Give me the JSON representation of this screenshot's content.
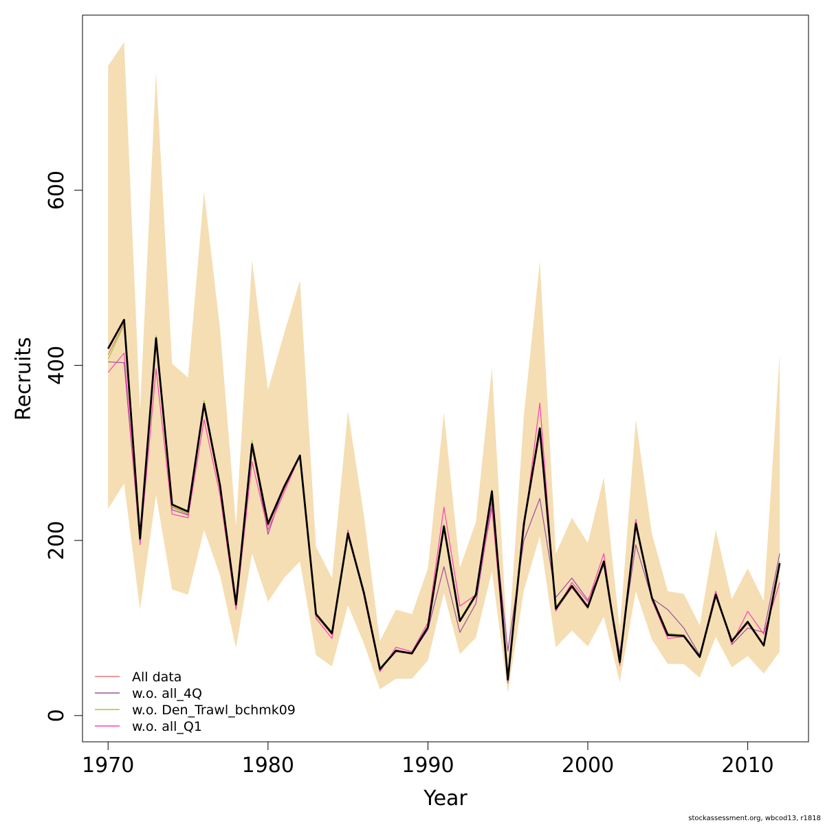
{
  "chart_data": {
    "type": "line",
    "xlabel": "Year",
    "ylabel": "Recruits",
    "xlim": [
      1968.4,
      2013.8
    ],
    "ylim": [
      -30,
      800
    ],
    "x_ticks": [
      1970,
      1980,
      1990,
      2000,
      2010
    ],
    "y_ticks": [
      0,
      200,
      400,
      600
    ],
    "grid": false,
    "legend_position": "bottom-left",
    "x": [
      1970,
      1971,
      1972,
      1973,
      1974,
      1975,
      1976,
      1977,
      1978,
      1979,
      1980,
      1981,
      1982,
      1983,
      1984,
      1985,
      1986,
      1987,
      1988,
      1989,
      1990,
      1991,
      1992,
      1993,
      1994,
      1995,
      1996,
      1997,
      1998,
      1999,
      2000,
      2001,
      2002,
      2003,
      2004,
      2005,
      2006,
      2007,
      2008,
      2009,
      2010,
      2011,
      2012
    ],
    "band": {
      "color": "#F5DEB3",
      "lower": [
        236,
        265,
        121,
        252,
        144,
        138,
        212,
        160,
        77,
        185,
        130,
        157,
        176,
        69,
        56,
        126,
        82,
        30,
        42,
        42,
        63,
        140,
        70,
        89,
        165,
        26,
        143,
        205,
        78,
        97,
        79,
        113,
        38,
        142,
        87,
        59,
        59,
        43,
        90,
        55,
        68,
        48,
        73
      ],
      "upper": [
        742,
        769,
        348,
        735,
        402,
        386,
        598,
        442,
        217,
        520,
        372,
        436,
        497,
        193,
        157,
        348,
        228,
        85,
        121,
        116,
        168,
        346,
        169,
        221,
        397,
        74,
        343,
        519,
        185,
        226,
        197,
        272,
        98,
        338,
        208,
        142,
        139,
        103,
        212,
        133,
        168,
        131,
        413
      ]
    },
    "series": [
      {
        "name": "",
        "color": "#000000",
        "width": 2.8,
        "values": [
          419,
          452,
          202,
          431,
          241,
          233,
          356,
          263,
          127,
          310,
          219,
          261,
          297,
          116,
          94,
          208,
          140,
          53,
          74,
          71,
          101,
          216,
          108,
          138,
          256,
          41,
          219,
          328,
          122,
          148,
          124,
          176,
          61,
          219,
          135,
          92,
          91,
          67,
          138,
          85,
          107,
          80,
          174
        ]
      },
      {
        "name": "All data",
        "color": "#E7777C",
        "width": 1.2,
        "values": [
          412,
          448,
          200,
          428,
          238,
          230,
          352,
          259,
          125,
          305,
          216,
          258,
          296,
          114,
          92,
          205,
          138,
          52,
          73,
          70,
          99,
          213,
          107,
          136,
          252,
          40,
          216,
          322,
          120,
          146,
          122,
          174,
          60,
          216,
          133,
          91,
          90,
          66,
          136,
          84,
          105,
          79,
          171
        ]
      },
      {
        "name": "w.o. all_4Q",
        "color": "#9B4FA0",
        "width": 1.2,
        "values": [
          404,
          403,
          198,
          429,
          235,
          229,
          353,
          265,
          126,
          311,
          207,
          262,
          297,
          116,
          94,
          209,
          142,
          53,
          75,
          71,
          98,
          170,
          95,
          128,
          244,
          74,
          200,
          248,
          135,
          157,
          132,
          172,
          71,
          195,
          134,
          121,
          100,
          69,
          142,
          81,
          100,
          95,
          185
        ]
      },
      {
        "name": "w.o. Den_Trawl_bchmk09",
        "color": "#9ACD32",
        "width": 1.2,
        "values": [
          407,
          446,
          201,
          434,
          239,
          231,
          360,
          264,
          129,
          314,
          220,
          262,
          296,
          117,
          95,
          207,
          141,
          54,
          74,
          71,
          102,
          219,
          109,
          140,
          258,
          42,
          220,
          329,
          124,
          149,
          125,
          177,
          62,
          220,
          136,
          94,
          92,
          66,
          137,
          86,
          108,
          79,
          176
        ]
      },
      {
        "name": "w.o. all_Q1",
        "color": "#FF3FB0",
        "width": 1.2,
        "values": [
          392,
          414,
          195,
          396,
          230,
          226,
          338,
          252,
          121,
          290,
          212,
          255,
          297,
          111,
          88,
          212,
          136,
          50,
          78,
          73,
          106,
          238,
          125,
          138,
          237,
          37,
          212,
          357,
          119,
          152,
          130,
          185,
          57,
          224,
          132,
          88,
          90,
          68,
          142,
          82,
          119,
          93,
          152
        ]
      }
    ]
  },
  "legend": {
    "items": [
      {
        "label": "All data",
        "color": "#E7777C"
      },
      {
        "label": "w.o. all_4Q",
        "color": "#9B4FA0"
      },
      {
        "label": "w.o. Den_Trawl_bchmk09",
        "color": "#9ACD32"
      },
      {
        "label": "w.o. all_Q1",
        "color": "#FF3FB0"
      }
    ]
  },
  "footer": "stockassessment.org, wbcod13, r1818"
}
